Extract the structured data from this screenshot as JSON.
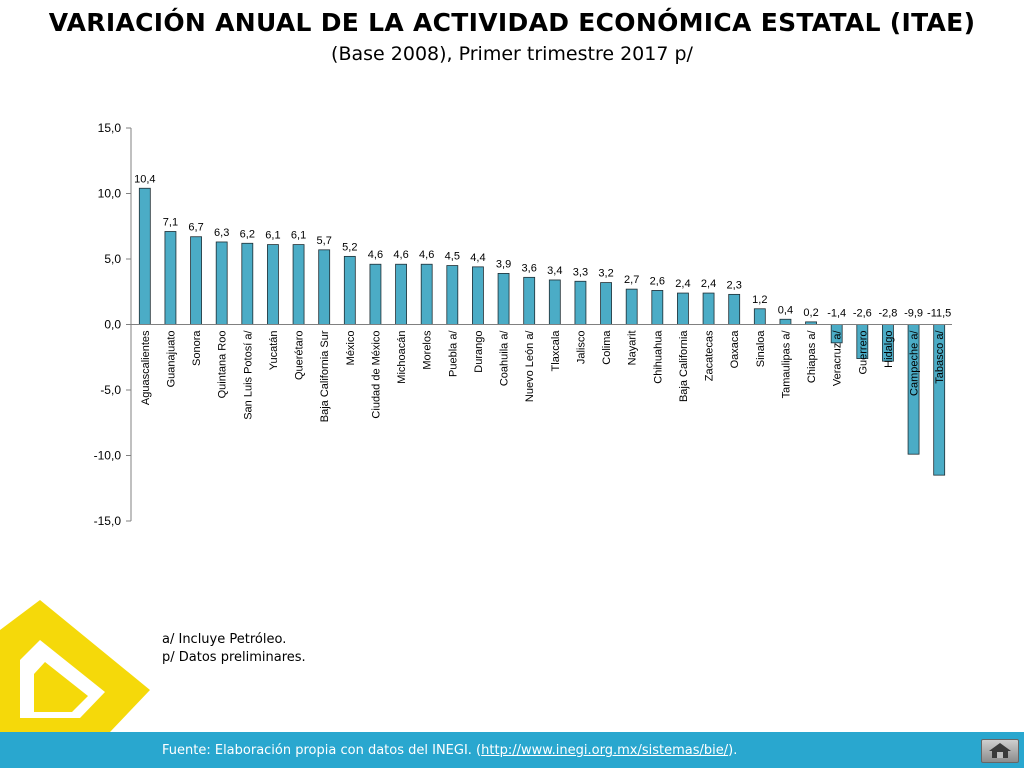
{
  "header": {
    "title": "VARIACIÓN ANUAL DE LA ACTIVIDAD ECONÓMICA ESTATAL (ITAE)",
    "subtitle": "(Base 2008),  Primer trimestre  2017 p/"
  },
  "notes": {
    "line1": "a/ Incluye Petróleo.",
    "line2": "p/ Datos preliminares."
  },
  "footer": {
    "prefix": "Fuente: Elaboración propia con datos del INEGI. (",
    "link": "http://www.inegi.org.mx/sistemas/bie/",
    "suffix": ")."
  },
  "colors": {
    "bar": "#4bacc6",
    "bar_stroke": "#1f2d33",
    "footer": "#29a7cf",
    "logo": "#f5d90a"
  },
  "chart_data": {
    "type": "bar",
    "title": "",
    "xlabel": "",
    "ylabel": "",
    "ylim": [
      -15,
      15
    ],
    "yticks": [
      15,
      10,
      5,
      0,
      -5,
      -10,
      -15
    ],
    "ytick_labels": [
      "15,0",
      "10,0",
      "5,0",
      "0,0",
      "-5,0",
      "-10,0",
      "-15,0"
    ],
    "grid": false,
    "categories": [
      "Aguascalientes",
      "Guanajuato",
      "Sonora",
      "Quintana Roo",
      "San Luis Potosí a/",
      "Yucatán",
      "Querétaro",
      "Baja California Sur",
      "México",
      "Ciudad de México",
      "Michoacán",
      "Morelos",
      "Puebla a/",
      "Durango",
      "Coahuila a/",
      "Nuevo León a/",
      "Tlaxcala",
      "Jalisco",
      "Colima",
      "Nayarit",
      "Chihuahua",
      "Baja California",
      "Zacatecas",
      "Oaxaca",
      "Sinaloa",
      "Tamaulipas a/",
      "Chiapas a/",
      "Veracruz a/",
      "Guerrero",
      "Hidalgo",
      "Campeche a/",
      "Tabasco a/"
    ],
    "values": [
      10.4,
      7.1,
      6.7,
      6.3,
      6.2,
      6.1,
      6.1,
      5.7,
      5.2,
      4.6,
      4.6,
      4.6,
      4.5,
      4.4,
      3.9,
      3.6,
      3.4,
      3.3,
      3.2,
      2.7,
      2.6,
      2.4,
      2.4,
      2.3,
      1.2,
      0.4,
      0.2,
      -1.4,
      -2.6,
      -2.8,
      -9.9,
      -11.5
    ],
    "value_labels": [
      "10,4",
      "7,1",
      "6,7",
      "6,3",
      "6,2",
      "6,1",
      "6,1",
      "5,7",
      "5,2",
      "4,6",
      "4,6",
      "4,6",
      "4,5",
      "4,4",
      "3,9",
      "3,6",
      "3,4",
      "3,3",
      "3,2",
      "2,7",
      "2,6",
      "2,4",
      "2,4",
      "2,3",
      "1,2",
      "0,4",
      "0,2",
      "-1,4",
      "-2,6",
      "-2,8",
      "-9,9",
      "-11,5"
    ]
  }
}
